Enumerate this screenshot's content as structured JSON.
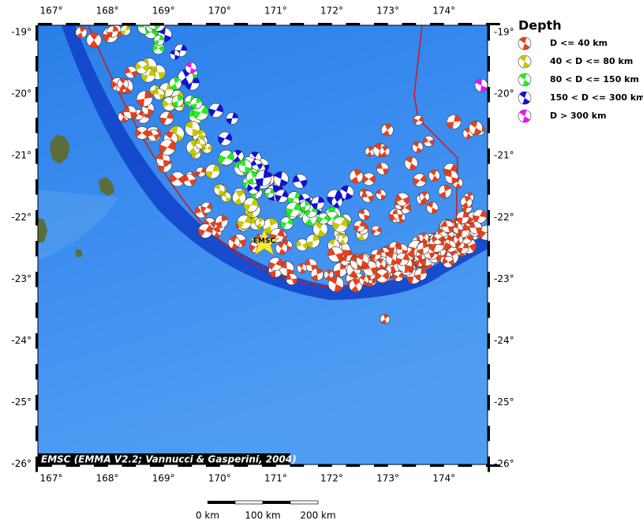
{
  "map": {
    "x_ticks": [
      "167°",
      "168°",
      "169°",
      "170°",
      "171°",
      "172°",
      "173°",
      "174°"
    ],
    "y_ticks": [
      "-19°",
      "-20°",
      "-21°",
      "-22°",
      "-23°",
      "-24°",
      "-25°",
      "-26°"
    ],
    "legend": {
      "title": "Depth",
      "items": [
        {
          "label": "D <= 40 km",
          "color": "#e8401c"
        },
        {
          "label": "40 < D <= 80 km",
          "color": "#c8c800"
        },
        {
          "label": "80 < D <= 150 km",
          "color": "#22ee22"
        },
        {
          "label": "150 < D <= 300 km",
          "color": "#1010d8"
        },
        {
          "label": "D > 300 km",
          "color": "#f010f0"
        }
      ]
    },
    "marker_label": "EMSC",
    "credit": "EMSC (EMMA V2.2; Vannucci & Gasperini, 2004)",
    "scale_bar": [
      "0 km",
      "100 km",
      "200 km"
    ]
  }
}
